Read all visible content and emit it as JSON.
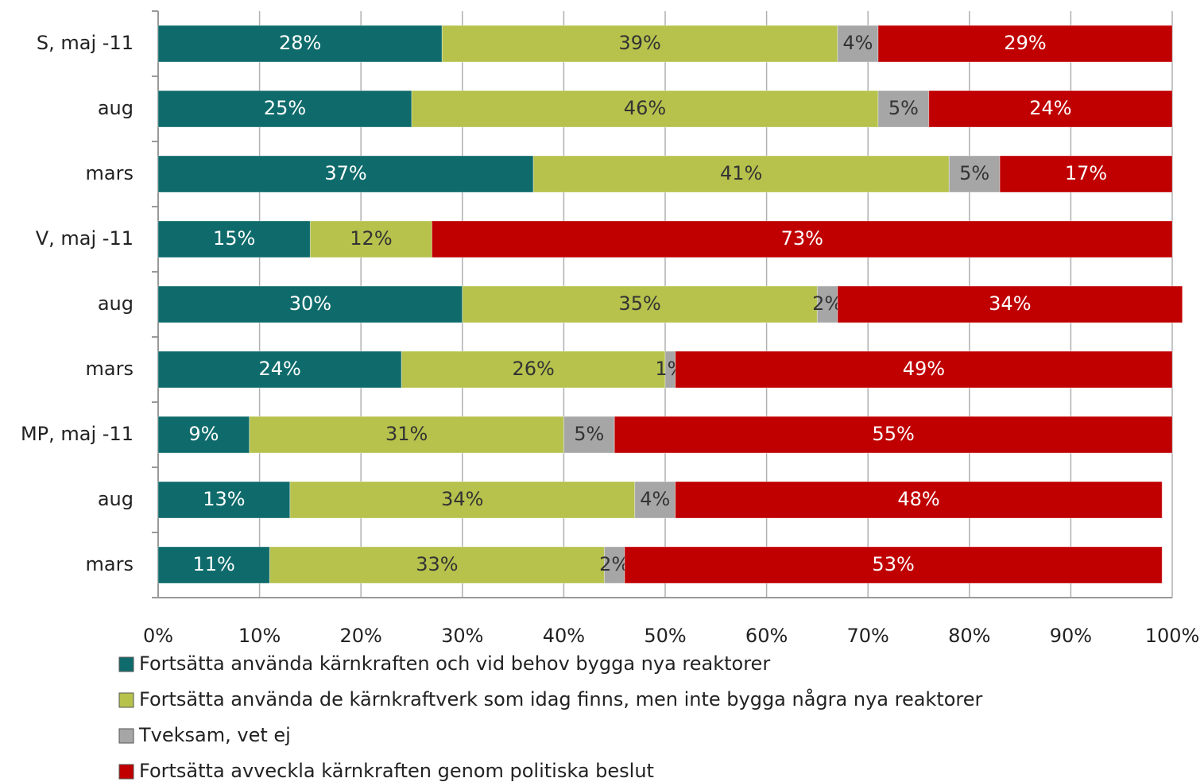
{
  "chart_data": {
    "type": "stacked_bar_horizontal",
    "categories": [
      "S, maj -11",
      "aug",
      "mars",
      "V, maj -11",
      "aug",
      "mars",
      "MP, maj -11",
      "aug",
      "mars"
    ],
    "series": [
      {
        "name": "Fortsätta använda kärnkraften och vid behov bygga nya reaktorer",
        "color": "#0f6b6b",
        "label_color": "#ffffff",
        "values": [
          28,
          25,
          37,
          15,
          30,
          24,
          9,
          13,
          11
        ],
        "value_labels": [
          "28%",
          "25%",
          "37%",
          "15%",
          "30%",
          "24%",
          "9%",
          "13%",
          "11%"
        ]
      },
      {
        "name": "Fortsätta använda de kärnkraftverk som idag finns, men inte bygga några nya reaktorer",
        "color": "#b6c24c",
        "label_color": "#333333",
        "values": [
          39,
          46,
          41,
          12,
          35,
          26,
          31,
          34,
          33
        ],
        "value_labels": [
          "39%",
          "46%",
          "41%",
          "12%",
          "35%",
          "26%",
          "31%",
          "34%",
          "33%"
        ]
      },
      {
        "name": "Tveksam, vet ej",
        "color": "#a6a6a6",
        "label_color": "#333333",
        "values": [
          4,
          5,
          5,
          null,
          2,
          1,
          5,
          4,
          2
        ],
        "value_labels": [
          "4%",
          "5%",
          "5%",
          null,
          "2%",
          "1%",
          "5%",
          "4%",
          "2%"
        ]
      },
      {
        "name": "Fortsätta avveckla kärnkraften genom politiska beslut",
        "color": "#c00000",
        "label_color": "#ffffff",
        "values": [
          29,
          24,
          17,
          73,
          34,
          49,
          55,
          48,
          53
        ],
        "value_labels": [
          "29%",
          "24%",
          "17%",
          "73%",
          "34%",
          "49%",
          "55%",
          "48%",
          "53%"
        ]
      }
    ],
    "xlim": [
      0,
      100
    ],
    "xticks": [
      {
        "value": 0,
        "label": "0%"
      },
      {
        "value": 10,
        "label": "10%"
      },
      {
        "value": 20,
        "label": "20%"
      },
      {
        "value": 30,
        "label": "30%"
      },
      {
        "value": 40,
        "label": "40%"
      },
      {
        "value": 50,
        "label": "50%"
      },
      {
        "value": 60,
        "label": "60%"
      },
      {
        "value": 70,
        "label": "70%"
      },
      {
        "value": 80,
        "label": "80%"
      },
      {
        "value": 90,
        "label": "90%"
      },
      {
        "value": 100,
        "label": "100%"
      }
    ],
    "grid": true,
    "legend": "bottom"
  }
}
